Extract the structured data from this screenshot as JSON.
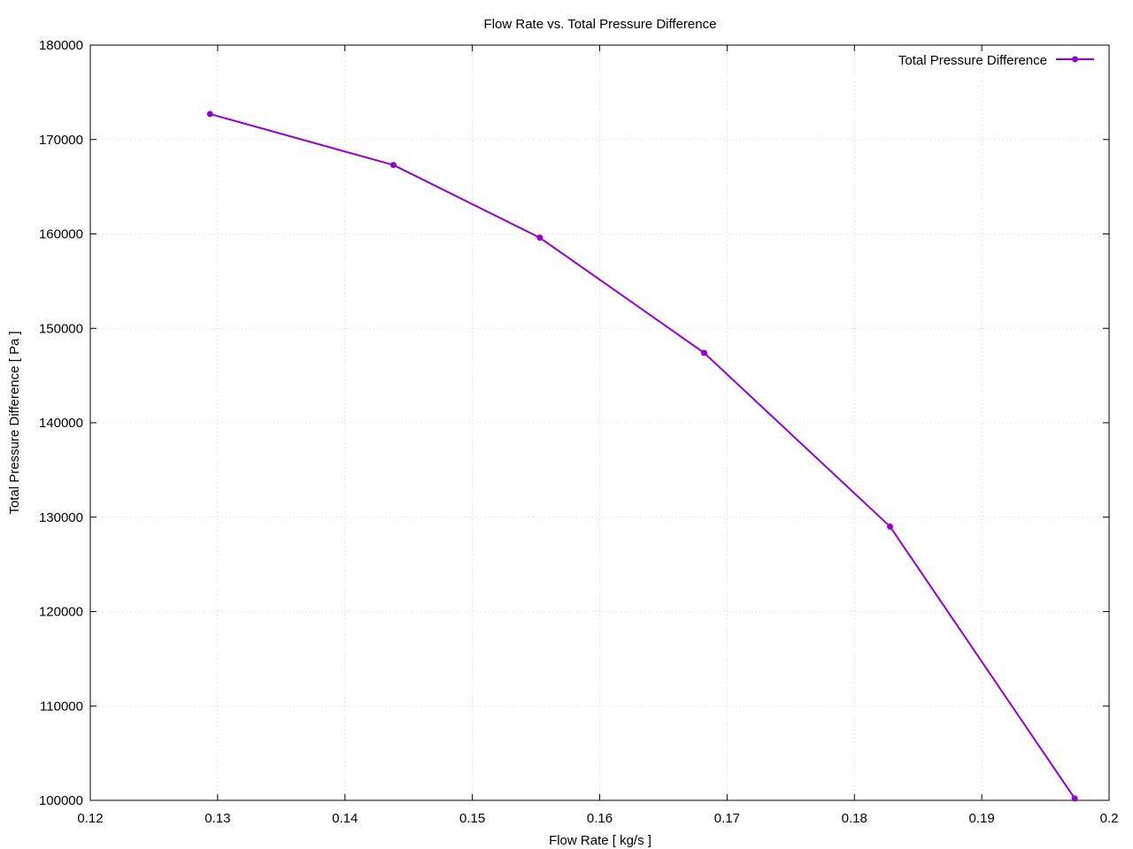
{
  "chart_data": {
    "type": "line",
    "title": "Flow Rate vs. Total Pressure Difference",
    "xlabel": "Flow Rate [ kg/s ]",
    "ylabel": "Total Pressure Difference [ Pa ]",
    "xlim": [
      0.12,
      0.2
    ],
    "ylim": [
      100000,
      180000
    ],
    "xticks": [
      0.12,
      0.13,
      0.14,
      0.15,
      0.16,
      0.17,
      0.18,
      0.19,
      0.2
    ],
    "xtick_labels": [
      "0.12",
      "0.13",
      "0.14",
      "0.15",
      "0.16",
      "0.17",
      "0.18",
      "0.19",
      "0.2"
    ],
    "yticks": [
      100000,
      110000,
      120000,
      130000,
      140000,
      150000,
      160000,
      170000,
      180000
    ],
    "ytick_labels": [
      "100000",
      "110000",
      "120000",
      "130000",
      "140000",
      "150000",
      "160000",
      "170000",
      "180000"
    ],
    "grid": true,
    "legend_position": "top-right",
    "series": [
      {
        "name": "Total Pressure Difference",
        "color": "#9400d3",
        "x": [
          0.1294,
          0.1438,
          0.1553,
          0.1682,
          0.1828,
          0.1973
        ],
        "y": [
          172700,
          167300,
          159600,
          147400,
          129000,
          100200
        ]
      }
    ]
  }
}
